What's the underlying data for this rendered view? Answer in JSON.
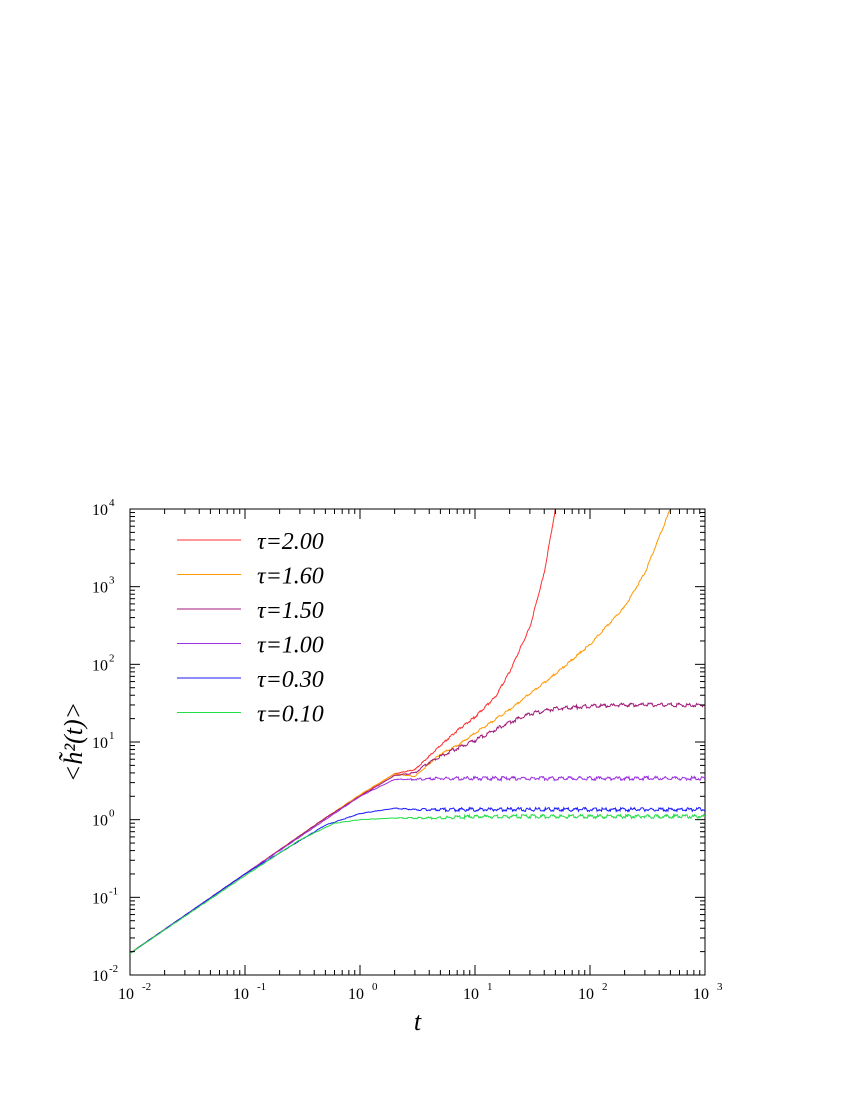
{
  "chart_data": {
    "type": "line",
    "title": "",
    "xlabel": "t",
    "ylabel": "<h̃²(t)>",
    "xscale": "log",
    "yscale": "log",
    "xlim": [
      0.01,
      1000
    ],
    "ylim": [
      0.01,
      10000
    ],
    "grid": false,
    "legend_position": "top-left",
    "x_ticks": [
      {
        "value": 0.01,
        "base": "10",
        "exp": "-2"
      },
      {
        "value": 0.1,
        "base": "10",
        "exp": "-1"
      },
      {
        "value": 1,
        "base": "10",
        "exp": "0"
      },
      {
        "value": 10,
        "base": "10",
        "exp": "1"
      },
      {
        "value": 100,
        "base": "10",
        "exp": "2"
      },
      {
        "value": 1000,
        "base": "10",
        "exp": "3"
      }
    ],
    "y_ticks": [
      {
        "value": 0.01,
        "base": "10",
        "exp": "-2"
      },
      {
        "value": 0.1,
        "base": "10",
        "exp": "-1"
      },
      {
        "value": 1,
        "base": "10",
        "exp": "0"
      },
      {
        "value": 10,
        "base": "10",
        "exp": "1"
      },
      {
        "value": 100,
        "base": "10",
        "exp": "2"
      },
      {
        "value": 1000,
        "base": "10",
        "exp": "3"
      },
      {
        "value": 10000,
        "base": "10",
        "exp": "4"
      }
    ],
    "series": [
      {
        "name": "τ=2.00",
        "color": "#ff3030",
        "points": [
          [
            0.01,
            0.019
          ],
          [
            0.1,
            0.2
          ],
          [
            0.5,
            1.05
          ],
          [
            1,
            2.05
          ],
          [
            2,
            3.9
          ],
          [
            3,
            4.4
          ],
          [
            5,
            9
          ],
          [
            7,
            14
          ],
          [
            10,
            21
          ],
          [
            15,
            38
          ],
          [
            20,
            80
          ],
          [
            30,
            300
          ],
          [
            40,
            1500
          ],
          [
            50,
            10000
          ]
        ]
      },
      {
        "name": "τ=1.60",
        "color": "#ff9900",
        "points": [
          [
            0.01,
            0.019
          ],
          [
            0.1,
            0.2
          ],
          [
            0.5,
            1.05
          ],
          [
            1,
            2.1
          ],
          [
            2,
            3.9
          ],
          [
            3,
            3.6
          ],
          [
            5,
            7
          ],
          [
            7,
            9
          ],
          [
            10,
            13
          ],
          [
            20,
            26
          ],
          [
            30,
            42
          ],
          [
            50,
            75
          ],
          [
            100,
            180
          ],
          [
            200,
            550
          ],
          [
            300,
            1500
          ],
          [
            500,
            10000
          ]
        ]
      },
      {
        "name": "τ=1.50",
        "color": "#a01a78",
        "points": [
          [
            0.01,
            0.019
          ],
          [
            0.1,
            0.2
          ],
          [
            0.5,
            1.05
          ],
          [
            1,
            2.0
          ],
          [
            2,
            3.7
          ],
          [
            3,
            4.0
          ],
          [
            4,
            5.5
          ],
          [
            6,
            7.5
          ],
          [
            10,
            10.5
          ],
          [
            20,
            18
          ],
          [
            30,
            23
          ],
          [
            50,
            27
          ],
          [
            100,
            29
          ],
          [
            200,
            30
          ],
          [
            500,
            30
          ],
          [
            1000,
            30
          ]
        ]
      },
      {
        "name": "τ=1.00",
        "color": "#9a30e0",
        "points": [
          [
            0.01,
            0.019
          ],
          [
            0.1,
            0.2
          ],
          [
            0.5,
            1.0
          ],
          [
            1,
            2.0
          ],
          [
            2,
            3.3
          ],
          [
            3,
            3.3
          ],
          [
            5,
            3.4
          ],
          [
            10,
            3.4
          ],
          [
            100,
            3.4
          ],
          [
            1000,
            3.4
          ]
        ]
      },
      {
        "name": "τ=0.30",
        "color": "#1a1aff",
        "points": [
          [
            0.01,
            0.019
          ],
          [
            0.1,
            0.2
          ],
          [
            0.5,
            0.85
          ],
          [
            1,
            1.2
          ],
          [
            2,
            1.4
          ],
          [
            3,
            1.35
          ],
          [
            5,
            1.35
          ],
          [
            10,
            1.35
          ],
          [
            100,
            1.35
          ],
          [
            1000,
            1.35
          ]
        ]
      },
      {
        "name": "τ=0.10",
        "color": "#22dd44",
        "points": [
          [
            0.01,
            0.019
          ],
          [
            0.1,
            0.19
          ],
          [
            0.3,
            0.55
          ],
          [
            0.6,
            0.9
          ],
          [
            1,
            1.0
          ],
          [
            2,
            1.05
          ],
          [
            5,
            1.05
          ],
          [
            10,
            1.1
          ],
          [
            100,
            1.1
          ],
          [
            1000,
            1.1
          ]
        ]
      }
    ]
  }
}
